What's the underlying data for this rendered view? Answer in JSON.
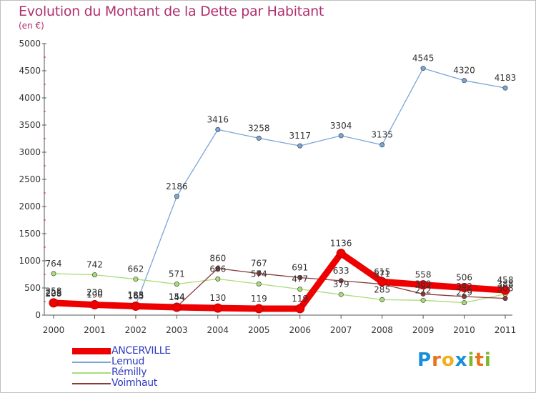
{
  "header": {
    "title": "Evolution du Montant de la Dette par Habitant",
    "subtitle": "(en €)"
  },
  "brand": {
    "name": "Proxiti",
    "letters": [
      {
        "ch": "P",
        "color": "#1a8fd6"
      },
      {
        "ch": "r",
        "color": "#e8731a"
      },
      {
        "ch": "o",
        "color": "#f2b01e"
      },
      {
        "ch": "x",
        "color": "#1a8fd6"
      },
      {
        "ch": "i",
        "color": "#7cb82f"
      },
      {
        "ch": "t",
        "color": "#e8731a"
      },
      {
        "ch": "i",
        "color": "#7cb82f"
      }
    ]
  },
  "chart_data": {
    "type": "line",
    "title": "Evolution du Montant de la Dette par Habitant",
    "subtitle": "(en €)",
    "x": [
      "2000",
      "2001",
      "2002",
      "2003",
      "2004",
      "2005",
      "2006",
      "2007",
      "2008",
      "2009",
      "2010",
      "2011"
    ],
    "ylim": [
      0,
      5000
    ],
    "yticks": [
      "0",
      "500",
      "1000",
      "1500",
      "2000",
      "2500",
      "3000",
      "3500",
      "4000",
      "4500",
      "5000"
    ],
    "grid": false,
    "legend_position": "bottom-left",
    "series": [
      {
        "name": "ANCERVILLE",
        "color": "#ee0000",
        "values": [
          225,
          190,
          165,
          144,
          130,
          119,
          119,
          1136,
          615,
          558,
          506,
          458
        ],
        "labels": [
          "225",
          "190",
          "165",
          "144",
          "130",
          "119",
          "119",
          "1136",
          "615",
          "558",
          "506",
          "458"
        ]
      },
      {
        "name": "Lemud",
        "color": "#7aa6d6",
        "values": [
          258,
          230,
          185,
          2186,
          3416,
          3258,
          3117,
          3304,
          3135,
          4545,
          4320,
          4183
        ],
        "labels": [
          "258",
          "230",
          "185",
          "2186",
          "3416",
          "3258",
          "3117",
          "3304",
          "3135",
          "4545",
          "4320",
          "4183"
        ]
      },
      {
        "name": "Rémilly",
        "color": "#a8dc78",
        "values": [
          764,
          742,
          662,
          571,
          666,
          574,
          477,
          379,
          285,
          272,
          229,
          388
        ],
        "labels": [
          "764",
          "742",
          "662",
          "571",
          "666",
          "574",
          "477",
          "379",
          "285",
          "272",
          "229",
          "388"
        ]
      },
      {
        "name": "Voimhaut",
        "color": "#8b3a3a",
        "values": [
          208,
          230,
          183,
          154,
          860,
          767,
          691,
          633,
          571,
          389,
          342,
          308
        ],
        "labels": [
          "208",
          "230",
          "183",
          "154",
          "860",
          "767",
          "691",
          "633",
          "571",
          "389",
          "342",
          "308"
        ]
      }
    ]
  }
}
